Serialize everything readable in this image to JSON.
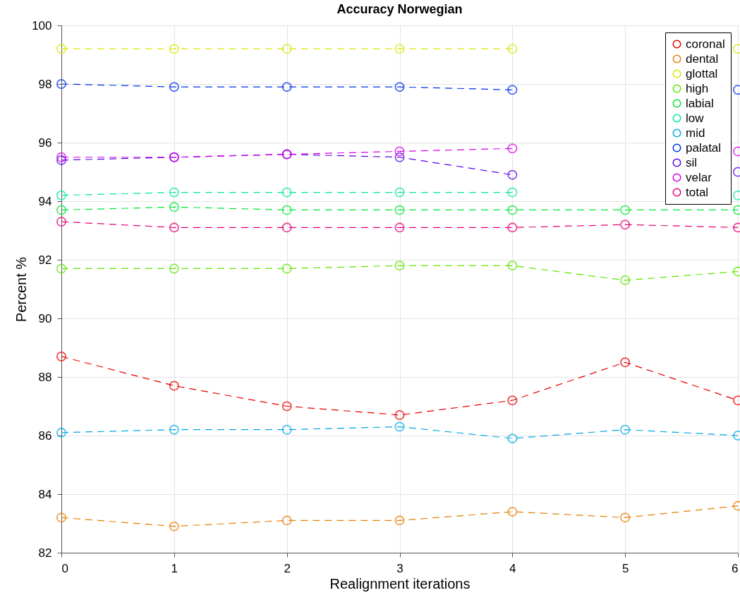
{
  "chart_data": {
    "type": "line",
    "title": "Accuracy Norwegian",
    "xlabel": "Realignment iterations",
    "ylabel": "Percent %",
    "x": [
      0,
      1,
      2,
      3,
      4,
      5,
      6
    ],
    "series": [
      {
        "name": "coronal",
        "color": "#e60000",
        "values": [
          88.7,
          87.7,
          87.0,
          86.7,
          87.2,
          88.5,
          87.2
        ]
      },
      {
        "name": "dental",
        "color": "#e67e00",
        "values": [
          83.2,
          82.9,
          83.1,
          83.1,
          83.4,
          83.2,
          83.6
        ]
      },
      {
        "name": "glottal",
        "color": "#d9e600",
        "values": [
          99.2,
          99.2,
          99.2,
          99.2,
          99.2,
          null,
          99.2
        ]
      },
      {
        "name": "high",
        "color": "#5ce600",
        "values": [
          91.7,
          91.7,
          91.7,
          91.8,
          91.8,
          91.3,
          91.6
        ]
      },
      {
        "name": "labial",
        "color": "#00e632",
        "values": [
          93.7,
          93.8,
          93.7,
          93.7,
          93.7,
          93.7,
          93.7
        ]
      },
      {
        "name": "low",
        "color": "#00e6a5",
        "values": [
          94.2,
          94.3,
          94.3,
          94.3,
          94.3,
          null,
          94.2
        ]
      },
      {
        "name": "mid",
        "color": "#00a8e6",
        "values": [
          86.1,
          86.2,
          86.2,
          86.3,
          85.9,
          86.2,
          86.0
        ]
      },
      {
        "name": "palatal",
        "color": "#0032e6",
        "values": [
          98.0,
          97.9,
          97.9,
          97.9,
          97.8,
          null,
          97.8
        ]
      },
      {
        "name": "sil",
        "color": "#5a00e6",
        "values": [
          95.4,
          95.5,
          95.6,
          95.5,
          94.9,
          null,
          95.0
        ]
      },
      {
        "name": "velar",
        "color": "#d400e6",
        "values": [
          95.5,
          95.5,
          95.6,
          95.7,
          95.8,
          null,
          95.7
        ]
      },
      {
        "name": "total",
        "color": "#e6007a",
        "values": [
          93.3,
          93.1,
          93.1,
          93.1,
          93.1,
          93.2,
          93.1
        ]
      }
    ],
    "xlim": [
      0,
      6
    ],
    "xticks": [
      0,
      1,
      2,
      3,
      4,
      5,
      6
    ],
    "ylim": [
      82,
      100
    ],
    "yticks": [
      82,
      84,
      86,
      88,
      90,
      92,
      94,
      96,
      98,
      100
    ],
    "grid": true,
    "legend": "top right",
    "marker": "circle",
    "line_style": "dashed"
  }
}
